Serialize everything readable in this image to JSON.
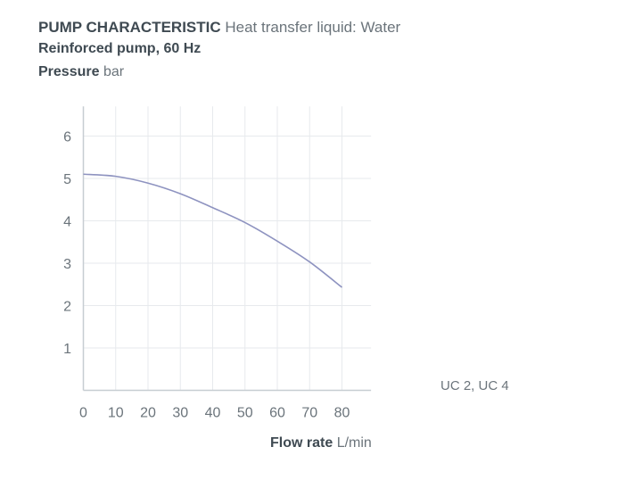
{
  "header": {
    "title_bold": "PUMP CHARACTERISTIC",
    "title_rest": "Heat transfer liquid: Water",
    "subtitle": "Reinforced pump, 60 Hz",
    "ylabel_bold": "Pressure",
    "ylabel_unit": "bar",
    "xlabel_bold": "Flow rate",
    "xlabel_unit": "L/min",
    "model_label": "UC 2, UC 4"
  },
  "colors": {
    "line": "#8e93c0",
    "grid": "#e7eaed",
    "axis": "#c7cdd2"
  },
  "chart_data": {
    "type": "line",
    "title": "PUMP CHARACTERISTIC Heat transfer liquid: Water",
    "xlabel": "Flow rate L/min",
    "ylabel": "Pressure bar",
    "xlim": [
      0,
      89
    ],
    "ylim": [
      0,
      6.7
    ],
    "xticks": [
      0,
      10,
      20,
      30,
      40,
      50,
      60,
      70,
      80
    ],
    "yticks": [
      1,
      2,
      3,
      4,
      5,
      6
    ],
    "grid": true,
    "series": [
      {
        "name": "UC 2, UC 4",
        "x": [
          0,
          10,
          20,
          30,
          40,
          50,
          60,
          70,
          80
        ],
        "y": [
          5.1,
          5.05,
          4.89,
          4.64,
          4.31,
          3.96,
          3.52,
          3.03,
          2.43
        ]
      }
    ]
  }
}
